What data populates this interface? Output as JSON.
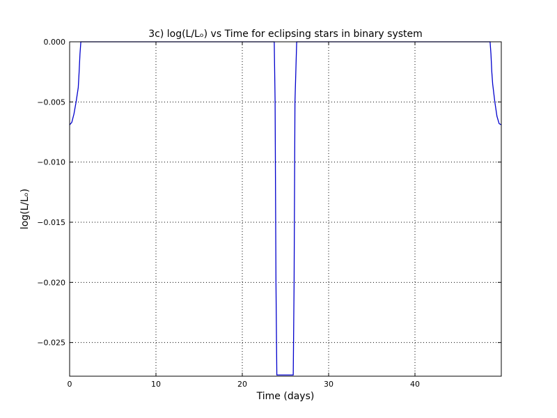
{
  "chart_data": {
    "type": "line",
    "title": "3c) log(L/Lₒ) vs Time for eclipsing stars in binary system",
    "xlabel": "Time (days)",
    "ylabel": "log(L/Lₒ)",
    "xlim": [
      0,
      50
    ],
    "ylim": [
      -0.0278,
      0.0
    ],
    "xticks": [
      0,
      10,
      20,
      30,
      40
    ],
    "xtick_labels": [
      "0",
      "10",
      "20",
      "30",
      "40"
    ],
    "yticks": [
      0.0,
      -0.005,
      -0.01,
      -0.015,
      -0.02,
      -0.025
    ],
    "ytick_labels": [
      "0.000",
      "−0.005",
      "−0.010",
      "−0.015",
      "−0.020",
      "−0.025"
    ],
    "grid": true,
    "line_color": "#0000cc",
    "series": [
      {
        "x": [
          0.0,
          0.25,
          0.5,
          0.75,
          1.0,
          1.1,
          1.2,
          1.3,
          23.7,
          23.8,
          23.9,
          24.0,
          25.9,
          26.0,
          26.1,
          26.3,
          48.7,
          48.8,
          48.9,
          49.0,
          49.25,
          49.5,
          49.75,
          50.0
        ],
        "y": [
          -0.0069,
          -0.0067,
          -0.006,
          -0.005,
          -0.0038,
          -0.0025,
          -0.001,
          0.0,
          0.0,
          -0.005,
          -0.02,
          -0.0277,
          -0.0277,
          -0.02,
          -0.005,
          0.0,
          0.0,
          -0.001,
          -0.0025,
          -0.0035,
          -0.005,
          -0.0062,
          -0.0068,
          -0.0069
        ]
      }
    ]
  }
}
